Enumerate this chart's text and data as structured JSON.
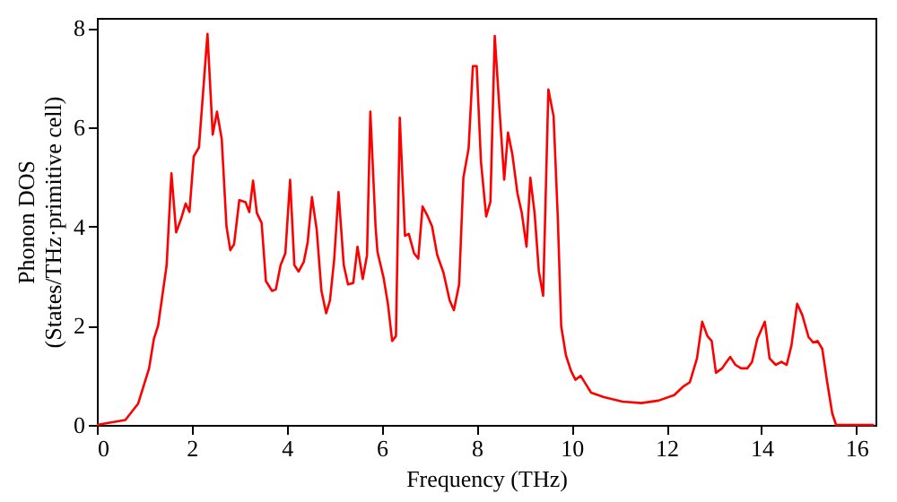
{
  "chart_data": {
    "type": "line",
    "xlabel": "Frequency (THz)",
    "ylabel": "Phonon DOS\n(States/THz·primitive cell)",
    "xlim": [
      0,
      16.4
    ],
    "ylim": [
      0,
      8.2
    ],
    "xticks": [
      0,
      2,
      4,
      6,
      8,
      10,
      12,
      14,
      16
    ],
    "yticks": [
      0,
      2,
      4,
      6,
      8
    ],
    "grid": false,
    "marker": "none",
    "line_style": "solid",
    "x": [
      0,
      0.6,
      0.87,
      1.1,
      1.2,
      1.29,
      1.47,
      1.57,
      1.67,
      1.77,
      1.87,
      1.95,
      2.04,
      2.15,
      2.33,
      2.44,
      2.53,
      2.63,
      2.73,
      2.81,
      2.89,
      3.0,
      3.13,
      3.21,
      3.29,
      3.37,
      3.47,
      3.56,
      3.69,
      3.77,
      3.87,
      3.97,
      4.07,
      4.16,
      4.25,
      4.36,
      4.44,
      4.53,
      4.63,
      4.73,
      4.83,
      4.91,
      5.0,
      5.09,
      5.2,
      5.29,
      5.4,
      5.49,
      5.6,
      5.69,
      5.76,
      5.87,
      5.91,
      6.04,
      6.13,
      6.22,
      6.3,
      6.38,
      6.49,
      6.57,
      6.68,
      6.77,
      6.86,
      6.97,
      7.06,
      7.17,
      7.3,
      7.43,
      7.52,
      7.63,
      7.72,
      7.83,
      7.92,
      8.0,
      8.09,
      8.2,
      8.29,
      8.38,
      8.49,
      8.58,
      8.66,
      8.75,
      8.86,
      8.95,
      9.05,
      9.13,
      9.22,
      9.31,
      9.4,
      9.51,
      9.62,
      9.71,
      9.78,
      9.88,
      9.99,
      10.08,
      10.19,
      10.3,
      10.41,
      10.68,
      11.07,
      11.47,
      11.83,
      12.16,
      12.36,
      12.49,
      12.64,
      12.75,
      12.86,
      12.95,
      13.04,
      13.17,
      13.25,
      13.34,
      13.45,
      13.57,
      13.7,
      13.8,
      13.91,
      14.07,
      14.17,
      14.3,
      14.42,
      14.53,
      14.63,
      14.75,
      14.86,
      14.99,
      15.09,
      15.18,
      15.28,
      15.38,
      15.49,
      15.57,
      16.37
    ],
    "series": [
      {
        "color": "#ff0000",
        "values": [
          0,
          0.1,
          0.43,
          1.14,
          1.73,
          2.0,
          3.22,
          5.07,
          3.88,
          4.14,
          4.46,
          4.29,
          5.41,
          5.59,
          7.88,
          5.85,
          6.31,
          5.76,
          4.0,
          3.52,
          3.64,
          4.53,
          4.49,
          4.29,
          4.92,
          4.27,
          4.07,
          2.9,
          2.7,
          2.73,
          3.22,
          3.46,
          4.94,
          3.22,
          3.09,
          3.29,
          3.68,
          4.59,
          3.94,
          2.7,
          2.25,
          2.51,
          3.35,
          4.69,
          3.22,
          2.83,
          2.86,
          3.59,
          2.94,
          3.42,
          6.31,
          4.0,
          3.49,
          2.96,
          2.44,
          1.69,
          1.79,
          6.19,
          3.81,
          3.85,
          3.46,
          3.35,
          4.4,
          4.2,
          4.0,
          3.42,
          3.07,
          2.51,
          2.31,
          2.83,
          4.98,
          5.57,
          7.23,
          7.23,
          5.31,
          4.2,
          4.5,
          7.84,
          6.22,
          4.94,
          5.89,
          5.46,
          4.66,
          4.27,
          3.59,
          4.98,
          4.27,
          3.09,
          2.6,
          6.76,
          6.22,
          4.14,
          1.99,
          1.4,
          1.08,
          0.91,
          0.99,
          0.82,
          0.65,
          0.56,
          0.47,
          0.44,
          0.49,
          0.6,
          0.78,
          0.86,
          1.34,
          2.08,
          1.79,
          1.69,
          1.05,
          1.14,
          1.25,
          1.37,
          1.21,
          1.14,
          1.14,
          1.27,
          1.73,
          2.08,
          1.34,
          1.21,
          1.27,
          1.21,
          1.6,
          2.44,
          2.21,
          1.77,
          1.66,
          1.69,
          1.53,
          0.88,
          0.23,
          0,
          0
        ]
      }
    ]
  }
}
